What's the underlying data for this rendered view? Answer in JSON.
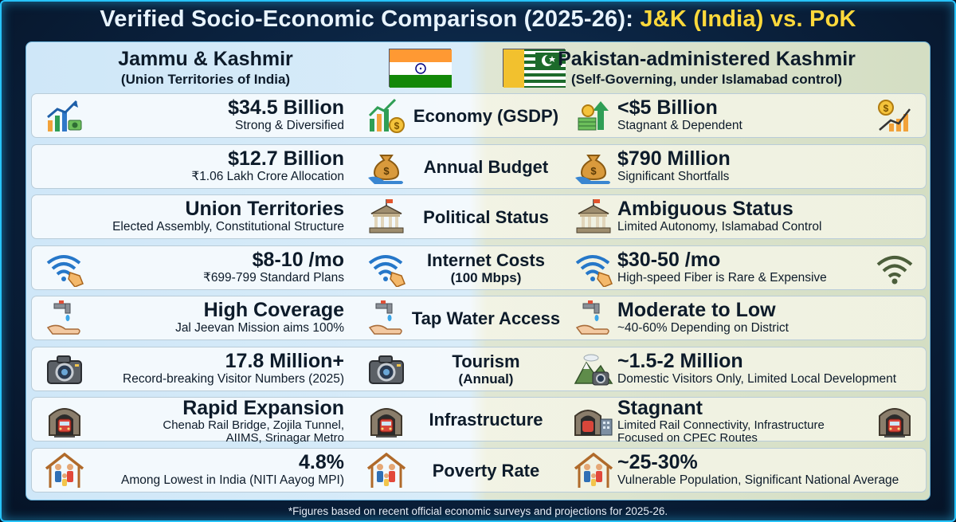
{
  "title": {
    "main": "Verified Socio-Economic Comparison (2025-26): ",
    "highlight": "J&K (India) vs. PoK"
  },
  "left_header": {
    "name": "Jammu & Kashmir",
    "subtitle": "(Union Territories of India)"
  },
  "right_header": {
    "name": "Pakistan-administered Kashmir",
    "subtitle": "(Self-Governing, under Islamabad control)"
  },
  "colors": {
    "accent": "#ffd93b",
    "frame": "#27c4ff",
    "background": "#0b2442"
  },
  "rows": [
    {
      "category": "Economy (GSDP)",
      "category2": "",
      "left_value": "$34.5 Billion",
      "left_desc": "Strong & Diversified",
      "left_desc2": "",
      "right_value": "<$5 Billion",
      "right_desc": "Stagnant & Dependent",
      "right_desc2": "",
      "icons": [
        "growth-chart-icon",
        "growth-chart-coins-icon",
        "money-stack-growth-icon",
        "coin-chart-icon"
      ]
    },
    {
      "category": "Annual Budget",
      "category2": "",
      "left_value": "$12.7 Billion",
      "left_desc": "₹1.06 Lakh Crore Allocation",
      "left_desc2": "",
      "right_value": "$790 Million",
      "right_desc": "Significant Shortfalls",
      "right_desc2": "",
      "icons": [
        "",
        "money-bag-hand-icon",
        "money-bag-hand-icon",
        ""
      ]
    },
    {
      "category": "Political Status",
      "category2": "",
      "left_value": "Union Territories",
      "left_desc": "Elected Assembly, Constitutional Structure",
      "left_desc2": "",
      "right_value": "Ambiguous Status",
      "right_desc": "Limited Autonomy, Islamabad Control",
      "right_desc2": "",
      "icons": [
        "",
        "government-building-icon",
        "government-building-icon",
        ""
      ]
    },
    {
      "category": "Internet Costs",
      "category2": "(100 Mbps)",
      "left_value": "$8-10 /mo",
      "left_desc": "₹699-799 Standard Plans",
      "left_desc2": "",
      "right_value": "$30-50 /mo",
      "right_desc": "High-speed Fiber is Rare & Expensive",
      "right_desc2": "",
      "icons": [
        "wifi-tag-icon",
        "wifi-tag-icon",
        "wifi-tag-icon",
        "wifi-icon"
      ]
    },
    {
      "category": "Tap Water Access",
      "category2": "",
      "left_value": "High Coverage",
      "left_desc": "Jal Jeevan Mission aims 100%",
      "left_desc2": "",
      "right_value": "Moderate to Low",
      "right_desc": "~40-60% Depending on District",
      "right_desc2": "",
      "icons": [
        "water-tap-hand-icon",
        "water-tap-hand-icon",
        "water-tap-hand-icon",
        ""
      ]
    },
    {
      "category": "Tourism",
      "category2": "(Annual)",
      "left_value": "17.8 Million+",
      "left_desc": "Record-breaking Visitor Numbers (2025)",
      "left_desc2": "",
      "right_value": "~1.5-2 Million",
      "right_desc": "Domestic Visitors Only, Limited Local Development",
      "right_desc2": "",
      "icons": [
        "camera-icon",
        "camera-icon",
        "mountain-camera-icon",
        ""
      ]
    },
    {
      "category": "Infrastructure",
      "category2": "",
      "left_value": "Rapid Expansion",
      "left_desc": "Chenab Rail Bridge, Zojila Tunnel,",
      "left_desc2": "AIIMS, Srinagar Metro",
      "right_value": "Stagnant",
      "right_desc": "Limited Rail Connectivity, Infrastructure",
      "right_desc2": "Focused on CPEC Routes",
      "icons": [
        "train-tunnel-icon",
        "train-tunnel-icon",
        "tunnel-building-icon",
        "train-tunnel-icon"
      ]
    },
    {
      "category": "Poverty Rate",
      "category2": "",
      "left_value": "4.8%",
      "left_desc": "Among Lowest in India (NITI Aayog MPI)",
      "left_desc2": "",
      "right_value": "~25-30%",
      "right_desc": "Vulnerable Population, Significant National Average",
      "right_desc2": "",
      "icons": [
        "family-house-icon",
        "family-house-icon",
        "family-house-icon",
        ""
      ]
    }
  ],
  "footer": "*Figures based on recent official economic surveys and projections for 2025-26."
}
